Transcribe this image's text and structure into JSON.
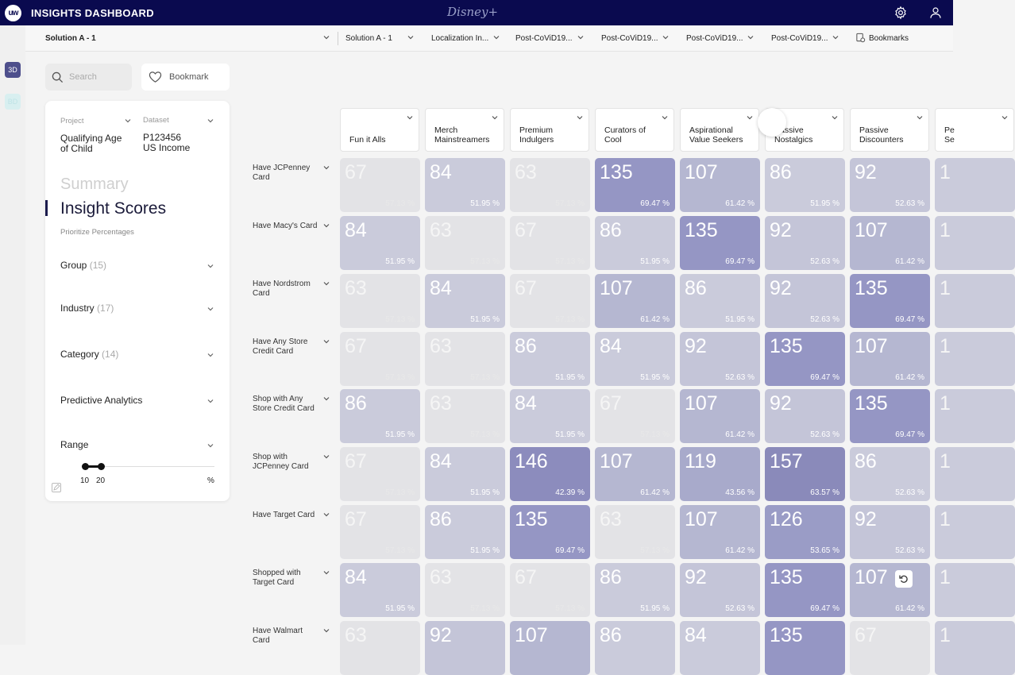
{
  "app": {
    "logo": "uw",
    "title": "INSIGHTS DASHBOARD",
    "brand": "Disney+"
  },
  "icons": {
    "settings": "gear-icon",
    "user": "user-icon",
    "search": "search-icon",
    "bookmark": "heart-icon"
  },
  "rail": {
    "btn1": "3D",
    "btn2": "BD"
  },
  "filter_row": {
    "items": [
      "Solution A - 1",
      "Solution A - 1",
      "Localization In...",
      "Post-CoViD19...",
      "Post-CoViD19...",
      "Post-CoViD19...",
      "Post-CoViD19..."
    ],
    "bookmarks": "Bookmarks"
  },
  "search": {
    "placeholder": "Search"
  },
  "bookmark_btn": "Bookmark",
  "panel": {
    "project_label": "Project",
    "dataset_label": "Dataset",
    "project_value_1": "Qualifying Age",
    "project_value_2": "of Child",
    "dataset_value_1": "P123456",
    "dataset_value_2": "US Income",
    "summary": "Summary",
    "insight": "Insight Scores",
    "prioritize": "Prioritize Percentages",
    "filters": [
      {
        "name": "Group",
        "count": "(15)"
      },
      {
        "name": "Industry",
        "count": "(17)"
      },
      {
        "name": "Category",
        "count": "(14)"
      },
      {
        "name": "Predictive Analytics",
        "count": ""
      },
      {
        "name": "Range",
        "count": ""
      }
    ],
    "range_min": "10",
    "range_max": "20",
    "range_unit": "%"
  },
  "columns": [
    "Fun it Alls",
    "Merch Mainstreamers",
    "Premium Indulgers",
    "Curators of Cool",
    "Aspirational Value Seekers",
    "Passive Nostalgics",
    "Passive Discounters",
    "Pe Se"
  ],
  "rows": [
    {
      "label": "Have JCPenney Card",
      "cells": [
        [
          "67",
          "57.13 %"
        ],
        [
          "84",
          "51.95 %"
        ],
        [
          "63",
          "57.13 %"
        ],
        [
          "135",
          "69.47 %"
        ],
        [
          "107",
          "61.42 %"
        ],
        [
          "86",
          "51.95 %"
        ],
        [
          "92",
          "52.63 %"
        ],
        [
          "1",
          ""
        ]
      ]
    },
    {
      "label": "Have Macy's Card",
      "cells": [
        [
          "84",
          "51.95 %"
        ],
        [
          "63",
          "57.13 %"
        ],
        [
          "67",
          "57.13 %"
        ],
        [
          "86",
          "51.95 %"
        ],
        [
          "135",
          "69.47 %"
        ],
        [
          "92",
          "52.63 %"
        ],
        [
          "107",
          "61.42 %"
        ],
        [
          "1",
          ""
        ]
      ]
    },
    {
      "label": "Have Nordstrom Card",
      "cells": [
        [
          "63",
          "57.13 %"
        ],
        [
          "84",
          "51.95 %"
        ],
        [
          "67",
          "57.13 %"
        ],
        [
          "107",
          "61.42 %"
        ],
        [
          "86",
          "51.95 %"
        ],
        [
          "92",
          "52.63 %"
        ],
        [
          "135",
          "69.47 %"
        ],
        [
          "1",
          ""
        ]
      ]
    },
    {
      "label": "Have Any Store Credit Card",
      "cells": [
        [
          "67",
          "57.13 %"
        ],
        [
          "63",
          "57.13 %"
        ],
        [
          "86",
          "51.95 %"
        ],
        [
          "84",
          "51.95 %"
        ],
        [
          "92",
          "52.63 %"
        ],
        [
          "135",
          "69.47 %"
        ],
        [
          "107",
          "61.42 %"
        ],
        [
          "1",
          ""
        ]
      ]
    },
    {
      "label": "Shop with Any Store Credit Card",
      "cells": [
        [
          "86",
          "51.95 %"
        ],
        [
          "63",
          "57.13 %"
        ],
        [
          "84",
          "51.95 %"
        ],
        [
          "67",
          "57.13 %"
        ],
        [
          "107",
          "61.42 %"
        ],
        [
          "92",
          "52.63 %"
        ],
        [
          "135",
          "69.47 %"
        ],
        [
          "1",
          ""
        ]
      ]
    },
    {
      "label": "Shop with JCPenney Card",
      "cells": [
        [
          "67",
          "57.13 %"
        ],
        [
          "84",
          "51.95 %"
        ],
        [
          "146",
          "42.39 %"
        ],
        [
          "107",
          "61.42 %"
        ],
        [
          "119",
          "43.56 %"
        ],
        [
          "157",
          "63.57 %"
        ],
        [
          "86",
          "52.63 %"
        ],
        [
          "1",
          ""
        ]
      ]
    },
    {
      "label": "Have Target Card",
      "cells": [
        [
          "67",
          "57.13 %"
        ],
        [
          "86",
          "51.95 %"
        ],
        [
          "135",
          "69.47 %"
        ],
        [
          "63",
          "57.13 %"
        ],
        [
          "107",
          "61.42 %"
        ],
        [
          "126",
          "53.65 %"
        ],
        [
          "92",
          "52.63 %"
        ],
        [
          "1",
          ""
        ]
      ]
    },
    {
      "label": "Shopped with Target Card",
      "cells": [
        [
          "84",
          "51.95 %"
        ],
        [
          "63",
          "57.13 %"
        ],
        [
          "67",
          "57.13 %"
        ],
        [
          "86",
          "51.95 %"
        ],
        [
          "92",
          "52.63 %"
        ],
        [
          "135",
          "69.47 %"
        ],
        [
          "107",
          "61.42 %"
        ],
        [
          "1",
          ""
        ]
      ]
    },
    {
      "label": "Have Walmart Card",
      "cells": [
        [
          "63",
          ""
        ],
        [
          "92",
          ""
        ],
        [
          "107",
          ""
        ],
        [
          "86",
          ""
        ],
        [
          "84",
          ""
        ],
        [
          "135",
          ""
        ],
        [
          "67",
          ""
        ],
        [
          "1",
          ""
        ]
      ]
    }
  ],
  "colors": {
    "topbar": "#0a0a4f",
    "score_63": "#e3e3e6",
    "score_67": "#e3e3e6",
    "score_84": "#cacbdb",
    "score_86": "#cacbdb",
    "score_92": "#c4c5d8",
    "score_107": "#b5b7d1",
    "score_119": "#a8aacb",
    "score_126": "#9a9cc6",
    "score_135": "#9596c4",
    "score_146": "#8c8cbd",
    "score_157": "#8a8aba"
  }
}
